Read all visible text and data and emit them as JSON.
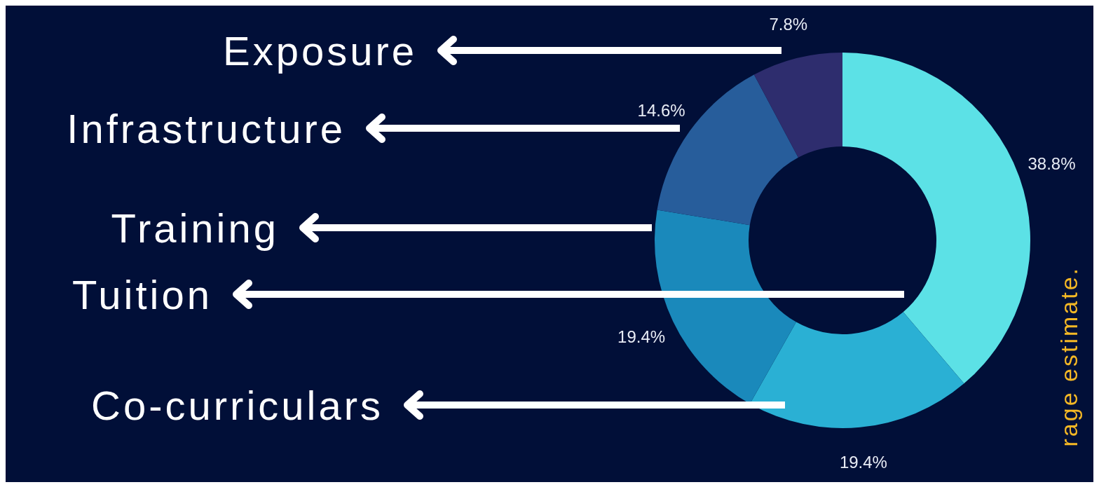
{
  "chart_data": {
    "type": "donut",
    "categories": [
      "Tuition",
      "Co-curriculars",
      "Training",
      "Infrastructure",
      "Exposure"
    ],
    "values": [
      38.8,
      19.4,
      19.4,
      14.6,
      7.8
    ],
    "value_labels": [
      "38.8%",
      "19.4%",
      "19.4%",
      "14.6%",
      "7.8%"
    ],
    "colors": [
      "#5ce1e6",
      "#2ab0d4",
      "#1a89bb",
      "#275d9b",
      "#2e2d6e"
    ],
    "legend": false,
    "annotations": [
      "rage estimate."
    ]
  }
}
